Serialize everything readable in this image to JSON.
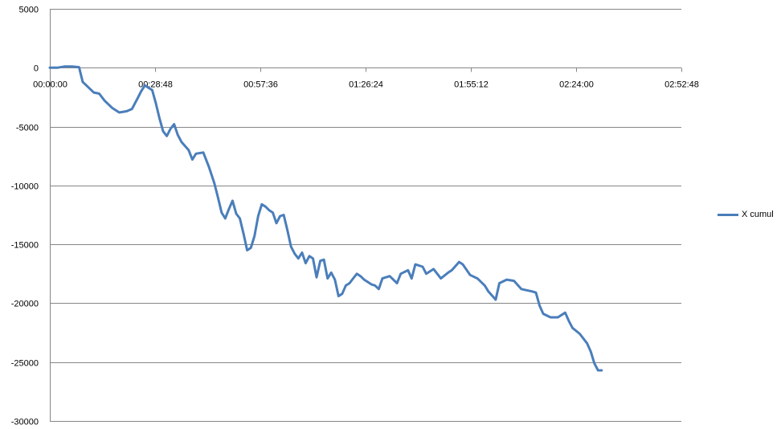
{
  "chart_data": {
    "type": "line",
    "title": "",
    "xlabel": "",
    "ylabel": "",
    "x_unit": "time h:mm:ss",
    "xlim": [
      "00:00:00",
      "02:52:48"
    ],
    "ylim": [
      -30000,
      5000
    ],
    "x_ticks": [
      "00:00:00",
      "00:28:48",
      "00:57:36",
      "01:26:24",
      "01:55:12",
      "02:24:00",
      "02:52:48"
    ],
    "y_ticks": [
      "5000",
      "0",
      "-5000",
      "-10000",
      "-15000",
      "-20000",
      "-25000",
      "-30000"
    ],
    "grid": "horizontal",
    "legend_position": "right",
    "series": [
      {
        "name": "X cumul",
        "color": "#4a7ebb",
        "x": [
          "00:00:00",
          "00:02:00",
          "00:04:00",
          "00:06:00",
          "00:08:00",
          "00:09:00",
          "00:10:00",
          "00:12:00",
          "00:13:30",
          "00:15:00",
          "00:17:00",
          "00:19:00",
          "00:21:00",
          "00:22:30",
          "00:24:00",
          "00:25:00",
          "00:26:00",
          "00:27:00",
          "00:28:00",
          "00:29:00",
          "00:30:00",
          "00:31:00",
          "00:32:00",
          "00:33:00",
          "00:34:00",
          "00:35:00",
          "00:36:00",
          "00:38:00",
          "00:39:00",
          "00:40:00",
          "00:42:00",
          "00:43:30",
          "00:45:00",
          "00:46:00",
          "00:47:00",
          "00:48:00",
          "00:49:00",
          "00:50:00",
          "00:51:00",
          "00:52:00",
          "00:53:00",
          "00:54:00",
          "00:55:00",
          "00:56:00",
          "00:57:00",
          "00:58:00",
          "00:59:00",
          "01:00:00",
          "01:01:00",
          "01:02:00",
          "01:03:00",
          "01:04:00",
          "01:05:00",
          "01:06:00",
          "01:07:00",
          "01:08:00",
          "01:09:00",
          "01:10:00",
          "01:11:00",
          "01:12:00",
          "01:13:00",
          "01:14:00",
          "01:15:00",
          "01:16:00",
          "01:17:00",
          "01:18:00",
          "01:19:00",
          "01:20:00",
          "01:21:00",
          "01:22:00",
          "01:23:00",
          "01:24:00",
          "01:25:00",
          "01:26:00",
          "01:27:00",
          "01:28:00",
          "01:29:00",
          "01:30:00",
          "01:31:00",
          "01:33:00",
          "01:35:00",
          "01:36:00",
          "01:38:00",
          "01:39:00",
          "01:40:00",
          "01:42:00",
          "01:43:00",
          "01:45:00",
          "01:47:00",
          "01:49:00",
          "01:50:00",
          "01:52:00",
          "01:53:00",
          "01:55:00",
          "01:57:00",
          "01:59:00",
          "02:00:00",
          "02:02:00",
          "02:03:00",
          "02:05:00",
          "02:07:00",
          "02:09:00",
          "02:12:00",
          "02:13:00",
          "02:14:00",
          "02:15:00",
          "02:17:00",
          "02:19:00",
          "02:21:00",
          "02:22:00",
          "02:23:00",
          "02:25:00",
          "02:26:00",
          "02:27:00",
          "02:28:00",
          "02:29:00",
          "02:30:00",
          "02:31:00"
        ],
        "y": [
          0,
          0,
          100,
          100,
          50,
          -1200,
          -1500,
          -2100,
          -2200,
          -2800,
          -3400,
          -3800,
          -3700,
          -3500,
          -2600,
          -2000,
          -1500,
          -1700,
          -1900,
          -3000,
          -4300,
          -5400,
          -5800,
          -5200,
          -4800,
          -5700,
          -6300,
          -7000,
          -7800,
          -7300,
          -7200,
          -8400,
          -9800,
          -11000,
          -12300,
          -12800,
          -12000,
          -11300,
          -12400,
          -12800,
          -14100,
          -15500,
          -15300,
          -14300,
          -12600,
          -11600,
          -11800,
          -12100,
          -12300,
          -13200,
          -12600,
          -12500,
          -13800,
          -15200,
          -15800,
          -16200,
          -15700,
          -16600,
          -16000,
          -16200,
          -17800,
          -16400,
          -16300,
          -17900,
          -17400,
          -18000,
          -19400,
          -19200,
          -18500,
          -18300,
          -17900,
          -17500,
          -17700,
          -18000,
          -18200,
          -18400,
          -18500,
          -18800,
          -17900,
          -17700,
          -18300,
          -17500,
          -17200,
          -17900,
          -16700,
          -16900,
          -17500,
          -17100,
          -17900,
          -17400,
          -17200,
          -16500,
          -16700,
          -17600,
          -17900,
          -18500,
          -19000,
          -19700,
          -18300,
          -18000,
          -18100,
          -18800,
          -19000,
          -19100,
          -20200,
          -20900,
          -21200,
          -21200,
          -20800,
          -21500,
          -22100,
          -22600,
          -23000,
          -23400,
          -24100,
          -25100,
          -25700,
          -25700
        ]
      }
    ]
  }
}
